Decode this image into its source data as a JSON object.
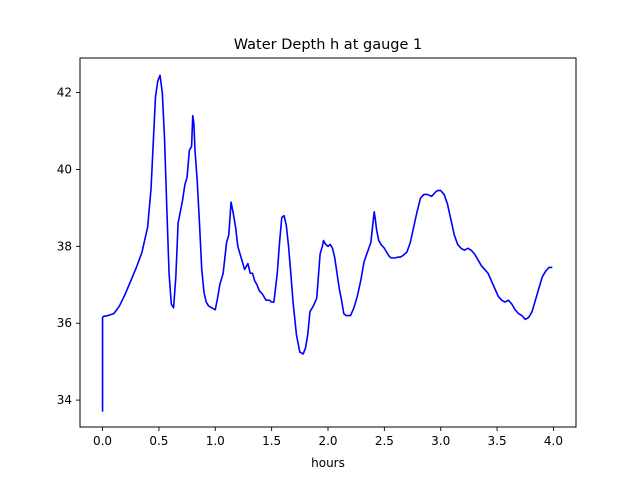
{
  "chart_data": {
    "type": "line",
    "title": "Water Depth h at gauge 1",
    "xlabel": "hours",
    "ylabel": "",
    "xlim": [
      -0.2,
      4.2
    ],
    "ylim": [
      33.3,
      42.9
    ],
    "xticks": [
      0.0,
      0.5,
      1.0,
      1.5,
      2.0,
      2.5,
      3.0,
      3.5,
      4.0
    ],
    "xtick_labels": [
      "0.0",
      "0.5",
      "1.0",
      "1.5",
      "2.0",
      "2.5",
      "3.0",
      "3.5",
      "4.0"
    ],
    "yticks": [
      34,
      36,
      38,
      40,
      42
    ],
    "ytick_labels": [
      "34",
      "36",
      "38",
      "40",
      "42"
    ],
    "grid": false,
    "series": [
      {
        "color": "#0000ff",
        "x": [
          0.0,
          0.0,
          0.01,
          0.05,
          0.1,
          0.15,
          0.2,
          0.25,
          0.3,
          0.35,
          0.4,
          0.43,
          0.45,
          0.47,
          0.49,
          0.51,
          0.53,
          0.55,
          0.57,
          0.59,
          0.61,
          0.63,
          0.65,
          0.67,
          0.69,
          0.71,
          0.73,
          0.75,
          0.77,
          0.79,
          0.8,
          0.81,
          0.82,
          0.84,
          0.86,
          0.88,
          0.9,
          0.92,
          0.94,
          0.97,
          1.0,
          1.02,
          1.04,
          1.07,
          1.1,
          1.12,
          1.14,
          1.16,
          1.18,
          1.2,
          1.23,
          1.26,
          1.29,
          1.31,
          1.33,
          1.35,
          1.37,
          1.39,
          1.42,
          1.45,
          1.48,
          1.5,
          1.52,
          1.55,
          1.57,
          1.59,
          1.61,
          1.63,
          1.65,
          1.67,
          1.69,
          1.72,
          1.75,
          1.78,
          1.8,
          1.82,
          1.84,
          1.87,
          1.9,
          1.93,
          1.95,
          1.96,
          1.97,
          1.98,
          2.0,
          2.02,
          2.04,
          2.06,
          2.08,
          2.1,
          2.12,
          2.14,
          2.16,
          2.18,
          2.2,
          2.23,
          2.26,
          2.29,
          2.32,
          2.35,
          2.38,
          2.41,
          2.42,
          2.43,
          2.45,
          2.47,
          2.5,
          2.52,
          2.54,
          2.56,
          2.58,
          2.6,
          2.62,
          2.64,
          2.66,
          2.68,
          2.7,
          2.73,
          2.76,
          2.79,
          2.82,
          2.85,
          2.88,
          2.92,
          2.95,
          2.97,
          3.0,
          3.03,
          3.06,
          3.09,
          3.12,
          3.15,
          3.18,
          3.21,
          3.24,
          3.27,
          3.3,
          3.33,
          3.36,
          3.39,
          3.42,
          3.45,
          3.48,
          3.51,
          3.54,
          3.57,
          3.6,
          3.63,
          3.66,
          3.69,
          3.72,
          3.75,
          3.78,
          3.81,
          3.84,
          3.87,
          3.9,
          3.93,
          3.96,
          3.99
        ],
        "y": [
          33.7,
          36.15,
          36.18,
          36.2,
          36.25,
          36.45,
          36.75,
          37.1,
          37.45,
          37.85,
          38.5,
          39.5,
          40.7,
          41.9,
          42.3,
          42.45,
          42.0,
          40.8,
          39.0,
          37.3,
          36.5,
          36.4,
          37.2,
          38.6,
          38.9,
          39.2,
          39.6,
          39.8,
          40.5,
          40.6,
          41.4,
          41.2,
          40.5,
          39.7,
          38.6,
          37.4,
          36.8,
          36.55,
          36.45,
          36.4,
          36.35,
          36.65,
          37.0,
          37.3,
          38.1,
          38.3,
          39.15,
          38.85,
          38.5,
          38.0,
          37.7,
          37.4,
          37.55,
          37.3,
          37.3,
          37.1,
          37.0,
          36.85,
          36.75,
          36.6,
          36.6,
          36.55,
          36.55,
          37.3,
          38.1,
          38.75,
          38.8,
          38.55,
          38.0,
          37.3,
          36.55,
          35.7,
          35.25,
          35.2,
          35.35,
          35.7,
          36.3,
          36.45,
          36.65,
          37.8,
          38.0,
          38.15,
          38.1,
          38.05,
          38.0,
          38.05,
          37.95,
          37.7,
          37.3,
          36.9,
          36.6,
          36.25,
          36.2,
          36.2,
          36.2,
          36.4,
          36.7,
          37.1,
          37.6,
          37.85,
          38.1,
          38.9,
          38.7,
          38.45,
          38.15,
          38.05,
          37.95,
          37.85,
          37.75,
          37.7,
          37.7,
          37.7,
          37.72,
          37.72,
          37.75,
          37.8,
          37.85,
          38.1,
          38.5,
          38.9,
          39.25,
          39.35,
          39.35,
          39.3,
          39.4,
          39.45,
          39.45,
          39.35,
          39.1,
          38.7,
          38.3,
          38.05,
          37.95,
          37.9,
          37.95,
          37.9,
          37.8,
          37.65,
          37.5,
          37.4,
          37.3,
          37.1,
          36.9,
          36.7,
          36.6,
          36.55,
          36.6,
          36.5,
          36.35,
          36.25,
          36.2,
          36.1,
          36.15,
          36.3,
          36.6,
          36.9,
          37.2,
          37.35,
          37.45,
          37.45
        ]
      }
    ]
  }
}
